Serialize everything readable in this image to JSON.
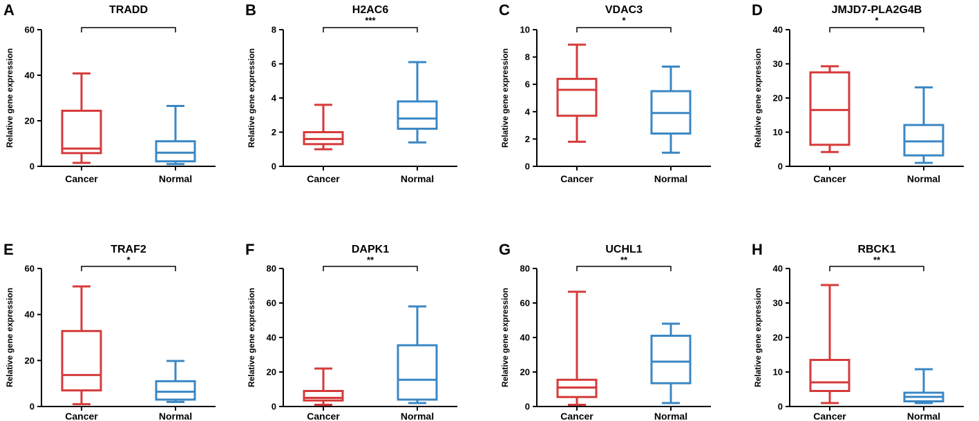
{
  "chart_data": [
    {
      "panel": "A",
      "type": "box",
      "title": "TRADD",
      "ylabel": "Relative gene expression",
      "ylim": [
        0,
        60
      ],
      "yticks": [
        0,
        20,
        40,
        60
      ],
      "categories": [
        "Cancer",
        "Normal"
      ],
      "significance": "",
      "series": [
        {
          "name": "Cancer",
          "color": "#d63a3a",
          "min": 1.5,
          "q1": 5.8,
          "median": 7.8,
          "q3": 24.4,
          "max": 40.8
        },
        {
          "name": "Normal",
          "color": "#3a87c4",
          "min": 1.0,
          "q1": 2.2,
          "median": 6.0,
          "q3": 11.0,
          "max": 26.5
        }
      ]
    },
    {
      "panel": "B",
      "type": "box",
      "title": "H2AC6",
      "ylabel": "Relative gene expression",
      "ylim": [
        0,
        8
      ],
      "yticks": [
        0,
        2,
        4,
        6,
        8
      ],
      "categories": [
        "Cancer",
        "Normal"
      ],
      "significance": "***",
      "series": [
        {
          "name": "Cancer",
          "color": "#d63a3a",
          "min": 1.0,
          "q1": 1.3,
          "median": 1.6,
          "q3": 2.0,
          "max": 3.6
        },
        {
          "name": "Normal",
          "color": "#3a87c4",
          "min": 1.4,
          "q1": 2.2,
          "median": 2.8,
          "q3": 3.8,
          "max": 6.1
        }
      ]
    },
    {
      "panel": "C",
      "type": "box",
      "title": "VDAC3",
      "ylabel": "Relative gene expression",
      "ylim": [
        0,
        10
      ],
      "yticks": [
        0,
        2,
        4,
        6,
        8,
        10
      ],
      "categories": [
        "Cancer",
        "Normal"
      ],
      "significance": "*",
      "series": [
        {
          "name": "Cancer",
          "color": "#d63a3a",
          "min": 1.8,
          "q1": 3.7,
          "median": 5.6,
          "q3": 6.4,
          "max": 8.9
        },
        {
          "name": "Normal",
          "color": "#3a87c4",
          "min": 1.0,
          "q1": 2.4,
          "median": 3.9,
          "q3": 5.5,
          "max": 7.3
        }
      ]
    },
    {
      "panel": "D",
      "type": "box",
      "title": "JMJD7-PLA2G4B",
      "ylabel": "Relative gene expression",
      "ylim": [
        0,
        40
      ],
      "yticks": [
        0,
        10,
        20,
        30,
        40
      ],
      "categories": [
        "Cancer",
        "Normal"
      ],
      "significance": "*",
      "series": [
        {
          "name": "Cancer",
          "color": "#d63a3a",
          "min": 4.2,
          "q1": 6.3,
          "median": 16.5,
          "q3": 27.5,
          "max": 29.3
        },
        {
          "name": "Normal",
          "color": "#3a87c4",
          "min": 1.0,
          "q1": 3.2,
          "median": 7.3,
          "q3": 12.1,
          "max": 23.1
        }
      ]
    },
    {
      "panel": "E",
      "type": "box",
      "title": "TRAF2",
      "ylabel": "Relative gene expression",
      "ylim": [
        0,
        60
      ],
      "yticks": [
        0,
        20,
        40,
        60
      ],
      "categories": [
        "Cancer",
        "Normal"
      ],
      "significance": "*",
      "series": [
        {
          "name": "Cancer",
          "color": "#d63a3a",
          "min": 1.0,
          "q1": 7.0,
          "median": 13.7,
          "q3": 32.8,
          "max": 52.2
        },
        {
          "name": "Normal",
          "color": "#3a87c4",
          "min": 2.0,
          "q1": 3.0,
          "median": 6.4,
          "q3": 11.0,
          "max": 19.8
        }
      ]
    },
    {
      "panel": "F",
      "type": "box",
      "title": "DAPK1",
      "ylabel": "Relative gene expression",
      "ylim": [
        0,
        80
      ],
      "yticks": [
        0,
        20,
        40,
        60,
        80
      ],
      "categories": [
        "Cancer",
        "Normal"
      ],
      "significance": "**",
      "series": [
        {
          "name": "Cancer",
          "color": "#d63a3a",
          "min": 1.0,
          "q1": 3.5,
          "median": 5.0,
          "q3": 9.0,
          "max": 22.0
        },
        {
          "name": "Normal",
          "color": "#3a87c4",
          "min": 2.0,
          "q1": 4.0,
          "median": 15.5,
          "q3": 35.5,
          "max": 58.0
        }
      ]
    },
    {
      "panel": "G",
      "type": "box",
      "title": "UCHL1",
      "ylabel": "Relative gene expression",
      "ylim": [
        0,
        80
      ],
      "yticks": [
        0,
        20,
        40,
        60,
        80
      ],
      "categories": [
        "Cancer",
        "Normal"
      ],
      "significance": "**",
      "series": [
        {
          "name": "Cancer",
          "color": "#d63a3a",
          "min": 1.0,
          "q1": 5.5,
          "median": 11.0,
          "q3": 15.5,
          "max": 66.5
        },
        {
          "name": "Normal",
          "color": "#3a87c4",
          "min": 2.0,
          "q1": 13.5,
          "median": 26.0,
          "q3": 41.0,
          "max": 48.0
        }
      ]
    },
    {
      "panel": "H",
      "type": "box",
      "title": "RBCK1",
      "ylabel": "Relative gene expression",
      "ylim": [
        0,
        40
      ],
      "yticks": [
        0,
        10,
        20,
        30,
        40
      ],
      "categories": [
        "Cancer",
        "Normal"
      ],
      "significance": "**",
      "series": [
        {
          "name": "Cancer",
          "color": "#d63a3a",
          "min": 1.0,
          "q1": 4.5,
          "median": 7.0,
          "q3": 13.5,
          "max": 35.2
        },
        {
          "name": "Normal",
          "color": "#3a87c4",
          "min": 1.0,
          "q1": 1.5,
          "median": 2.8,
          "q3": 4.0,
          "max": 10.8
        }
      ]
    }
  ]
}
